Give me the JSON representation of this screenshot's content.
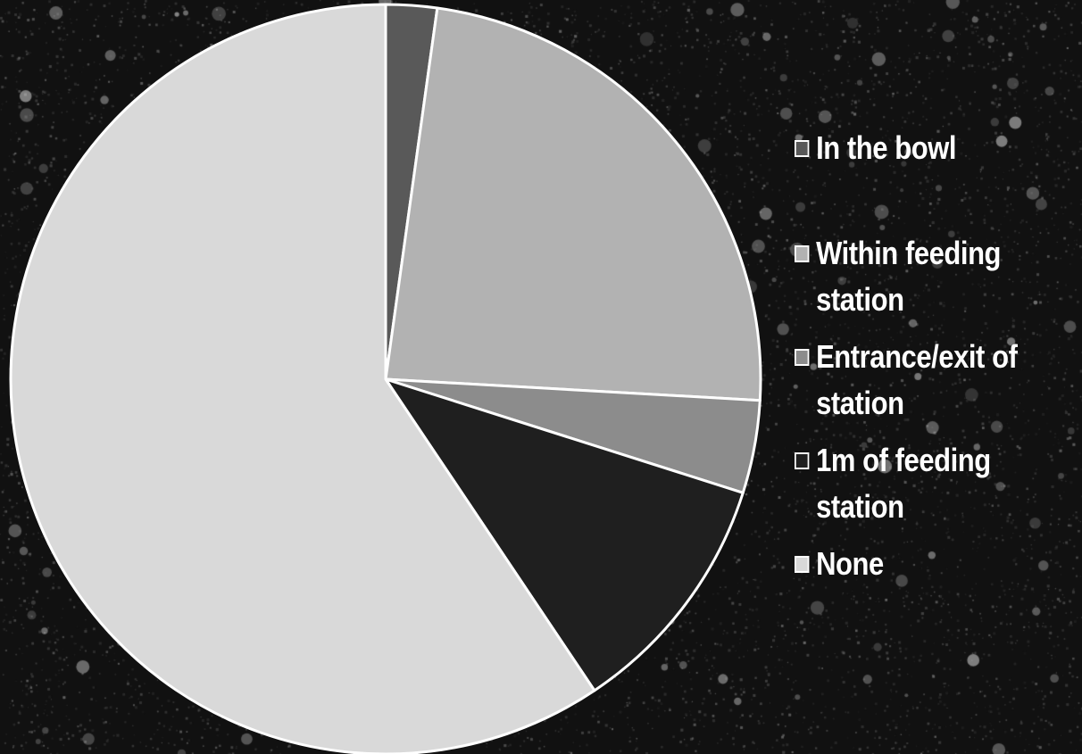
{
  "chart_data": {
    "type": "pie",
    "title": "",
    "categories": [
      "In the bowl",
      "Within feeding station",
      "Entrance/exit of station",
      "1m of feeding station",
      "None"
    ],
    "values": [
      2.2,
      23.7,
      4.0,
      10.7,
      59.4
    ],
    "unit": "percent",
    "start_angle_deg": 0,
    "direction": "clockwise",
    "colors": [
      "#595959",
      "#b2b2b2",
      "#8c8c8c",
      "#1f1f1f",
      "#d9d9d9"
    ],
    "slice_border_color": "#ffffff",
    "legend_position": "right",
    "legend": [
      {
        "label": "In the bowl",
        "color": "#595959"
      },
      {
        "label": "Within feeding\nstation",
        "color": "#b2b2b2"
      },
      {
        "label": "Entrance/exit of\nstation",
        "color": "#8c8c8c"
      },
      {
        "label": "1m of feeding\nstation",
        "color": "#1f1f1f"
      },
      {
        "label": "None",
        "color": "#d9d9d9"
      }
    ]
  }
}
